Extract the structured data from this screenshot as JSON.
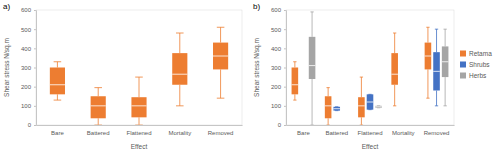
{
  "chart_data": [
    {
      "type": "box",
      "title": "a)",
      "x_label": "Effect",
      "y_label": "Shear stress N/sq.m",
      "categories": [
        "Bare",
        "Battered",
        "Flattened",
        "Mortality",
        "Removed"
      ],
      "ylim": [
        0,
        600
      ],
      "yticks": [
        0,
        100,
        200,
        300,
        400,
        500,
        600
      ],
      "grid": false,
      "series": [
        {
          "color": "#ed7d31",
          "min": [
            130,
            0,
            0,
            100,
            140
          ],
          "q1": [
            160,
            35,
            40,
            210,
            290
          ],
          "median": [
            210,
            100,
            100,
            265,
            360
          ],
          "q3": [
            300,
            150,
            145,
            375,
            430
          ],
          "max": [
            330,
            195,
            250,
            480,
            510
          ]
        }
      ]
    },
    {
      "type": "box",
      "title": "b)",
      "x_label": "Effect",
      "y_label": "Shear stress N/sq.m",
      "categories": [
        "Bare",
        "Battered",
        "Flattened",
        "Mortality",
        "Removed"
      ],
      "ylim": [
        0,
        600
      ],
      "yticks": [
        0,
        100,
        200,
        300,
        400,
        500,
        600
      ],
      "grid": false,
      "legend": "right",
      "series": [
        {
          "name": "Retama",
          "color": "#ed7d31",
          "min": [
            130,
            0,
            0,
            100,
            140
          ],
          "q1": [
            160,
            35,
            40,
            210,
            290
          ],
          "median": [
            210,
            100,
            100,
            265,
            360
          ],
          "q3": [
            300,
            150,
            145,
            375,
            430
          ],
          "max": [
            330,
            195,
            250,
            480,
            510
          ]
        },
        {
          "name": "Shrubs",
          "color": "#4472c4",
          "min": [
            null,
            75,
            80,
            null,
            100
          ],
          "q1": [
            null,
            75,
            80,
            null,
            180
          ],
          "median": [
            null,
            85,
            120,
            null,
            280
          ],
          "q3": [
            null,
            95,
            160,
            null,
            380
          ],
          "max": [
            null,
            95,
            160,
            null,
            500
          ]
        },
        {
          "name": "Herbs",
          "color": "#a5a5a5",
          "min": [
            0,
            null,
            90,
            null,
            100
          ],
          "q1": [
            240,
            null,
            90,
            null,
            250
          ],
          "median": [
            310,
            null,
            95,
            null,
            330
          ],
          "q3": [
            460,
            null,
            100,
            null,
            410
          ],
          "max": [
            590,
            null,
            100,
            null,
            500
          ]
        }
      ]
    }
  ]
}
